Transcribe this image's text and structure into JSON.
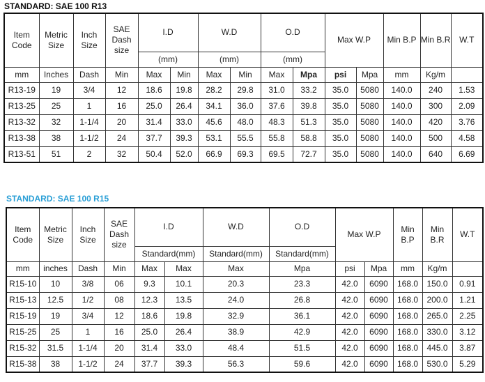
{
  "r13": {
    "title": "STANDARD: SAE 100 R13",
    "headers": {
      "item_code": "Item Code",
      "metric_size": "Metric Size",
      "inch_size": "Inch Size",
      "sae_dash": "SAE Dash size",
      "id": "I.D",
      "wd": "W.D",
      "od": "O.D",
      "id_unit": "(mm)",
      "wd_unit": "(mm)",
      "od_unit": "(mm)",
      "max_wp": "Max W.P",
      "min_bp": "Min B.P",
      "min_br": "Min B.R",
      "wt": "W.T"
    },
    "units": [
      "mm",
      "Inches",
      "Dash",
      "Min",
      "Max",
      "Min",
      "Max",
      "Min",
      "Max",
      "Mpa",
      "psi",
      "Mpa",
      "mm",
      "Kg/m"
    ],
    "rows": [
      [
        "R13-19",
        "19",
        "3/4",
        "12",
        "18.6",
        "19.8",
        "28.2",
        "29.8",
        "31.0",
        "33.2",
        "35.0",
        "5080",
        "140.0",
        "240",
        "1.53"
      ],
      [
        "R13-25",
        "25",
        "1",
        "16",
        "25.0",
        "26.4",
        "34.1",
        "36.0",
        "37.6",
        "39.8",
        "35.0",
        "5080",
        "140.0",
        "300",
        "2.09"
      ],
      [
        "R13-32",
        "32",
        "1-1/4",
        "20",
        "31.4",
        "33.0",
        "45.6",
        "48.0",
        "48.3",
        "51.3",
        "35.0",
        "5080",
        "140.0",
        "420",
        "3.76"
      ],
      [
        "R13-38",
        "38",
        "1-1/2",
        "24",
        "37.7",
        "39.3",
        "53.1",
        "55.5",
        "55.8",
        "58.8",
        "35.0",
        "5080",
        "140.0",
        "500",
        "4.58"
      ],
      [
        "R13-51",
        "51",
        "2",
        "32",
        "50.4",
        "52.0",
        "66.9",
        "69.3",
        "69.5",
        "72.7",
        "35.0",
        "5080",
        "140.0",
        "640",
        "6.69"
      ]
    ]
  },
  "r15": {
    "title": "STANDARD: SAE 100 R15",
    "title_color": "#2a9fd6",
    "headers": {
      "item_code": "Item Code",
      "metric_size": "Metric Size",
      "inch_size": "Inch Size",
      "sae_dash": "SAE Dash size",
      "id": "I.D",
      "wd": "W.D",
      "od": "O.D",
      "id_unit": "Standard(mm)",
      "wd_unit": "Standard(mm)",
      "od_unit": "Standard(mm)",
      "max_wp": "Max W.P",
      "min_bp": "Min B.P",
      "min_br": "Min B.R",
      "wt": "W.T"
    },
    "units": [
      "mm",
      "inches",
      "Dash",
      "Min",
      "Max",
      "Max",
      "Max",
      "Mpa",
      "psi",
      "Mpa",
      "mm",
      "Kg/m"
    ],
    "rows": [
      [
        "R15-10",
        "10",
        "3/8",
        "06",
        "9.3",
        "10.1",
        "20.3",
        "23.3",
        "42.0",
        "6090",
        "168.0",
        "150.0",
        "0.91"
      ],
      [
        "R15-13",
        "12.5",
        "1/2",
        "08",
        "12.3",
        "13.5",
        "24.0",
        "26.8",
        "42.0",
        "6090",
        "168.0",
        "200.0",
        "1.21"
      ],
      [
        "R15-19",
        "19",
        "3/4",
        "12",
        "18.6",
        "19.8",
        "32.9",
        "36.1",
        "42.0",
        "6090",
        "168.0",
        "265.0",
        "2.25"
      ],
      [
        "R15-25",
        "25",
        "1",
        "16",
        "25.0",
        "26.4",
        "38.9",
        "42.9",
        "42.0",
        "6090",
        "168.0",
        "330.0",
        "3.12"
      ],
      [
        "R15-32",
        "31.5",
        "1-1/4",
        "20",
        "31.4",
        "33.0",
        "48.4",
        "51.5",
        "42.0",
        "6090",
        "168.0",
        "445.0",
        "3.87"
      ],
      [
        "R15-38",
        "38",
        "1-1/2",
        "24",
        "37.7",
        "39.3",
        "56.3",
        "59.6",
        "42.0",
        "6090",
        "168.0",
        "530.0",
        "5.29"
      ]
    ]
  }
}
